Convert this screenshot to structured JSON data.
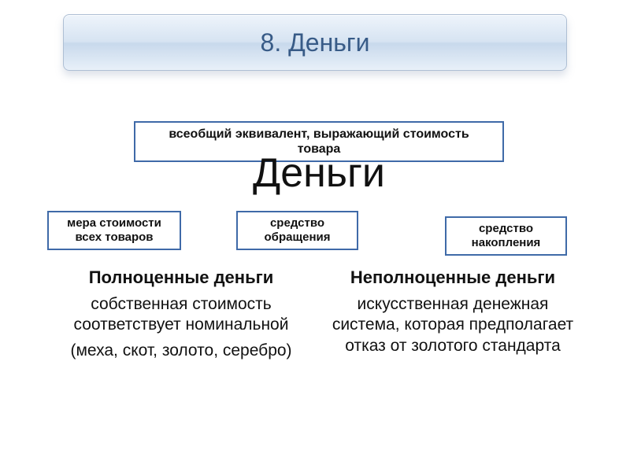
{
  "colors": {
    "banner_text": "#385b87",
    "box_border": "#3f6aa8",
    "text": "#111111",
    "banner_gradient_top": "#eef4fb",
    "banner_gradient_mid1": "#d7e4f2",
    "banner_gradient_mid2": "#c8d9ec",
    "banner_gradient_bottom": "#e8f0f9",
    "background": "#ffffff"
  },
  "typography": {
    "banner_fontsize": 32,
    "central_word_fontsize": 52,
    "definition_fontsize": 16,
    "small_box_fontsize": 15,
    "column_title_fontsize": 22,
    "column_body_fontsize": 21
  },
  "header": {
    "title": "8. Деньги"
  },
  "definition_box": {
    "text": "всеобщий эквивалент, выражающий стоимость товара"
  },
  "central_word": "Деньги",
  "function_boxes": {
    "mera": {
      "line1": "мера стоимости",
      "line2": "всех товаров"
    },
    "obr": {
      "line1": "средство",
      "line2": "обращения"
    },
    "nak": {
      "line1": "средство",
      "line2": "накопления"
    }
  },
  "columns": {
    "left": {
      "title": "Полноценные деньги",
      "p1": "собственная стоимость соответствует номинальной",
      "p2": "(меха, скот, золото, серебро)"
    },
    "right": {
      "title": "Неполноценные деньги",
      "p1": "искусственная денежная система, которая предполагает отказ от золотого стандарта"
    }
  }
}
